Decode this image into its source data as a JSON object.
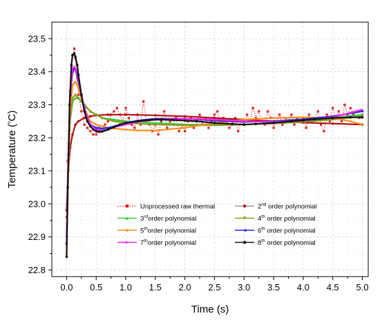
{
  "chart_data": {
    "type": "line",
    "xlabel": "Time (s)",
    "ylabel": {
      "prefix": "Temperature (",
      "sup": "o",
      "suffix": "C)"
    },
    "xlim": [
      -0.25,
      5.1
    ],
    "ylim": [
      22.78,
      23.55
    ],
    "x_ticks": [
      "0.0",
      "0.5",
      "1.0",
      "1.5",
      "2.0",
      "2.5",
      "3.0",
      "3.5",
      "4.0",
      "4.5",
      "5.0"
    ],
    "y_ticks": [
      "22.8",
      "22.9",
      "23.0",
      "23.1",
      "23.2",
      "23.3",
      "23.4",
      "23.5"
    ],
    "grid": true,
    "legend_position": "lower-center",
    "series": [
      {
        "name": "Unprocessed raw thermal",
        "legend": {
          "pre": "Unprocessed raw thermal",
          "sup": "",
          "post": ""
        },
        "color": "#e02020",
        "style": "dotted",
        "marker": "square",
        "x": [
          0.0,
          0.02,
          0.05,
          0.08,
          0.1,
          0.13,
          0.15,
          0.18,
          0.2,
          0.25,
          0.3,
          0.35,
          0.4,
          0.45,
          0.5,
          0.55,
          0.6,
          0.65,
          0.7,
          0.75,
          0.8,
          0.85,
          0.9,
          0.95,
          1.0,
          1.05,
          1.1,
          1.15,
          1.2,
          1.25,
          1.3,
          1.35,
          1.4,
          1.45,
          1.5,
          1.55,
          1.6,
          1.65,
          1.7,
          1.75,
          1.8,
          1.85,
          1.9,
          1.95,
          2.0,
          2.05,
          2.1,
          2.15,
          2.2,
          2.25,
          2.3,
          2.35,
          2.4,
          2.45,
          2.5,
          2.55,
          2.6,
          2.65,
          2.7,
          2.75,
          2.8,
          2.85,
          2.9,
          2.95,
          3.0,
          3.05,
          3.1,
          3.15,
          3.2,
          3.25,
          3.3,
          3.35,
          3.4,
          3.45,
          3.5,
          3.55,
          3.6,
          3.65,
          3.7,
          3.75,
          3.8,
          3.85,
          3.9,
          3.95,
          4.0,
          4.05,
          4.1,
          4.15,
          4.2,
          4.25,
          4.3,
          4.35,
          4.4,
          4.45,
          4.5,
          4.55,
          4.6,
          4.65,
          4.7,
          4.75,
          4.8,
          4.85,
          4.9,
          4.95,
          5.0
        ],
        "y": [
          22.96,
          23.13,
          23.3,
          23.42,
          23.45,
          23.47,
          23.44,
          23.38,
          23.33,
          23.28,
          23.24,
          23.23,
          23.22,
          23.21,
          23.21,
          23.23,
          23.22,
          23.24,
          23.25,
          23.27,
          23.28,
          23.29,
          23.27,
          23.25,
          23.29,
          23.26,
          23.24,
          23.23,
          23.27,
          23.24,
          23.31,
          23.25,
          23.24,
          23.22,
          23.24,
          23.21,
          23.25,
          23.28,
          23.23,
          23.25,
          23.24,
          23.26,
          23.22,
          23.24,
          23.22,
          23.25,
          23.26,
          23.23,
          23.25,
          23.27,
          23.24,
          23.26,
          23.23,
          23.25,
          23.27,
          23.28,
          23.24,
          23.26,
          23.25,
          23.23,
          23.24,
          23.26,
          23.22,
          23.25,
          23.24,
          23.27,
          23.25,
          23.29,
          23.26,
          23.28,
          23.25,
          23.24,
          23.28,
          23.26,
          23.23,
          23.25,
          23.27,
          23.24,
          23.26,
          23.25,
          23.27,
          23.24,
          23.26,
          23.25,
          23.26,
          23.23,
          23.27,
          23.25,
          23.26,
          23.28,
          23.24,
          23.22,
          23.27,
          23.25,
          23.29,
          23.26,
          23.28,
          23.25,
          23.3,
          23.27,
          23.29,
          23.27,
          23.28,
          23.26,
          23.27
        ]
      },
      {
        "name": "2nd order polynomial",
        "legend": {
          "pre": "2",
          "sup": "nd",
          "post": " order polynomial"
        },
        "color": "#b01010",
        "style": "solid",
        "marker": "circle",
        "x": [
          0.0,
          0.03,
          0.06,
          0.1,
          0.15,
          0.2,
          0.3,
          0.4,
          0.5,
          0.7,
          1.0,
          1.5,
          2.0,
          2.5,
          3.0,
          3.5,
          4.0,
          4.5,
          5.0
        ],
        "y": [
          22.98,
          23.1,
          23.17,
          23.21,
          23.24,
          23.25,
          23.26,
          23.265,
          23.268,
          23.27,
          23.27,
          23.268,
          23.265,
          23.26,
          23.255,
          23.25,
          23.246,
          23.243,
          23.24
        ]
      },
      {
        "name": "3rd order polynomial",
        "legend": {
          "pre": "3",
          "sup": "rd",
          "post": "order polynomial"
        },
        "color": "#33cc33",
        "style": "solid",
        "marker": "triangle",
        "x": [
          0.0,
          0.03,
          0.06,
          0.1,
          0.15,
          0.2,
          0.25,
          0.3,
          0.35,
          0.4,
          0.5,
          0.6,
          0.8,
          1.0,
          1.5,
          2.0,
          2.5,
          3.0,
          3.5,
          4.0,
          4.5,
          5.0
        ],
        "y": [
          22.88,
          23.1,
          23.25,
          23.31,
          23.32,
          23.32,
          23.31,
          23.3,
          23.29,
          23.28,
          23.27,
          23.26,
          23.255,
          23.25,
          23.245,
          23.24,
          23.24,
          23.24,
          23.245,
          23.25,
          23.26,
          23.27
        ]
      },
      {
        "name": "4th order polynomial",
        "legend": {
          "pre": "4",
          "sup": "th",
          "post": " order polynomial"
        },
        "color": "#8a9a20",
        "style": "solid",
        "marker": "triangle-down",
        "x": [
          0.0,
          0.03,
          0.06,
          0.1,
          0.15,
          0.2,
          0.25,
          0.3,
          0.4,
          0.5,
          0.6,
          0.8,
          1.0,
          1.5,
          2.0,
          2.5,
          3.0,
          3.5,
          4.0,
          4.5,
          5.0
        ],
        "y": [
          22.88,
          23.12,
          23.26,
          23.32,
          23.33,
          23.32,
          23.31,
          23.3,
          23.28,
          23.27,
          23.26,
          23.25,
          23.245,
          23.24,
          23.238,
          23.238,
          23.24,
          23.243,
          23.248,
          23.255,
          23.265
        ]
      },
      {
        "name": "5th order polynomial",
        "legend": {
          "pre": "5",
          "sup": "th",
          "post": "order polynomial"
        },
        "color": "#ff8c1a",
        "style": "solid",
        "marker": "star",
        "x": [
          0.0,
          0.03,
          0.06,
          0.1,
          0.15,
          0.2,
          0.25,
          0.3,
          0.35,
          0.4,
          0.5,
          0.6,
          0.7,
          0.8,
          1.0,
          1.2,
          1.5,
          2.0,
          2.5,
          3.0,
          3.5,
          4.0,
          4.5,
          4.8,
          5.0
        ],
        "y": [
          22.85,
          23.1,
          23.28,
          23.36,
          23.37,
          23.35,
          23.32,
          23.29,
          23.27,
          23.25,
          23.24,
          23.235,
          23.23,
          23.228,
          23.225,
          23.222,
          23.222,
          23.23,
          23.245,
          23.255,
          23.26,
          23.262,
          23.26,
          23.25,
          23.24
        ]
      },
      {
        "name": "6th order polynomial",
        "legend": {
          "pre": "6",
          "sup": "th",
          "post": " order polynomial"
        },
        "color": "#2222dd",
        "style": "solid",
        "marker": "triangle-left",
        "x": [
          0.0,
          0.03,
          0.06,
          0.1,
          0.13,
          0.16,
          0.2,
          0.25,
          0.3,
          0.35,
          0.4,
          0.5,
          0.6,
          0.7,
          0.8,
          1.0,
          1.2,
          1.5,
          2.0,
          2.5,
          3.0,
          3.5,
          4.0,
          4.5,
          5.0
        ],
        "y": [
          22.9,
          23.15,
          23.33,
          23.4,
          23.41,
          23.4,
          23.37,
          23.33,
          23.29,
          23.26,
          23.24,
          23.23,
          23.228,
          23.23,
          23.235,
          23.245,
          23.252,
          23.258,
          23.258,
          23.252,
          23.248,
          23.25,
          23.256,
          23.265,
          23.28
        ]
      },
      {
        "name": "7th order polynomial",
        "legend": {
          "pre": "7",
          "sup": "th",
          "post": "order polynomial"
        },
        "color": "#ee22ee",
        "style": "solid",
        "marker": "triangle-right",
        "x": [
          0.0,
          0.03,
          0.06,
          0.1,
          0.13,
          0.16,
          0.2,
          0.25,
          0.3,
          0.35,
          0.4,
          0.5,
          0.6,
          0.7,
          0.8,
          1.0,
          1.2,
          1.5,
          2.0,
          2.5,
          3.0,
          3.5,
          4.0,
          4.5,
          5.0
        ],
        "y": [
          22.88,
          23.15,
          23.34,
          23.41,
          23.415,
          23.405,
          23.38,
          23.33,
          23.29,
          23.26,
          23.24,
          23.225,
          23.222,
          23.225,
          23.232,
          23.24,
          23.248,
          23.255,
          23.258,
          23.255,
          23.25,
          23.248,
          23.252,
          23.262,
          23.285
        ]
      },
      {
        "name": "8th order polynomial",
        "legend": {
          "pre": "8",
          "sup": "th",
          "post": " order polynomial"
        },
        "color": "#111111",
        "style": "solid",
        "marker": "circle",
        "x": [
          0.0,
          0.02,
          0.05,
          0.08,
          0.1,
          0.13,
          0.15,
          0.18,
          0.2,
          0.25,
          0.3,
          0.35,
          0.4,
          0.45,
          0.5,
          0.55,
          0.6,
          0.65,
          0.7,
          0.8,
          0.9,
          1.0,
          1.2,
          1.4,
          1.6,
          1.8,
          2.0,
          2.2,
          2.5,
          2.8,
          3.0,
          3.2,
          3.5,
          3.8,
          4.0,
          4.2,
          4.5,
          4.8,
          5.0
        ],
        "y": [
          22.84,
          23.05,
          23.3,
          23.42,
          23.45,
          23.455,
          23.445,
          23.42,
          23.39,
          23.33,
          23.28,
          23.25,
          23.235,
          23.225,
          23.22,
          23.218,
          23.219,
          23.222,
          23.225,
          23.232,
          23.24,
          23.245,
          23.25,
          23.254,
          23.255,
          23.254,
          23.252,
          23.25,
          23.245,
          23.242,
          23.24,
          23.242,
          23.245,
          23.25,
          23.253,
          23.256,
          23.26,
          23.262,
          23.262
        ]
      }
    ]
  }
}
